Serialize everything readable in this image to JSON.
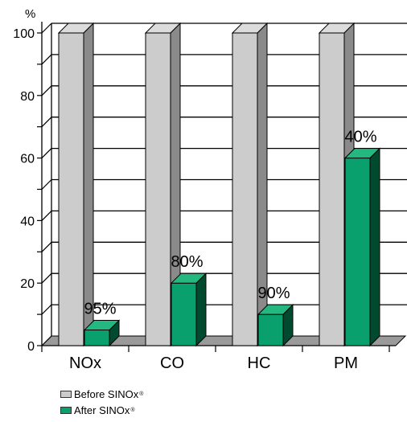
{
  "chart_data": {
    "type": "bar",
    "title": "",
    "ylabel": "%",
    "xlabel": "",
    "ylim": [
      0,
      100
    ],
    "yticks": [
      0,
      20,
      40,
      60,
      80,
      100
    ],
    "grid": true,
    "categories": [
      "NOx",
      "CO",
      "HC",
      "PM"
    ],
    "series": [
      {
        "name": "Before SINOx",
        "values": [
          100,
          100,
          100,
          100
        ],
        "color": "#cccccc"
      },
      {
        "name": "After SINOx",
        "values": [
          5,
          20,
          10,
          60
        ],
        "color": "#0aa06e"
      }
    ],
    "data_labels": [
      "95%",
      "80%",
      "90%",
      "40%"
    ],
    "legend_position": "bottom-left",
    "legend": [
      {
        "text": "Before SINOx",
        "mark": "®",
        "color": "#cccccc"
      },
      {
        "text": "After SINOx",
        "mark": "®",
        "color": "#0aa06e"
      }
    ]
  }
}
